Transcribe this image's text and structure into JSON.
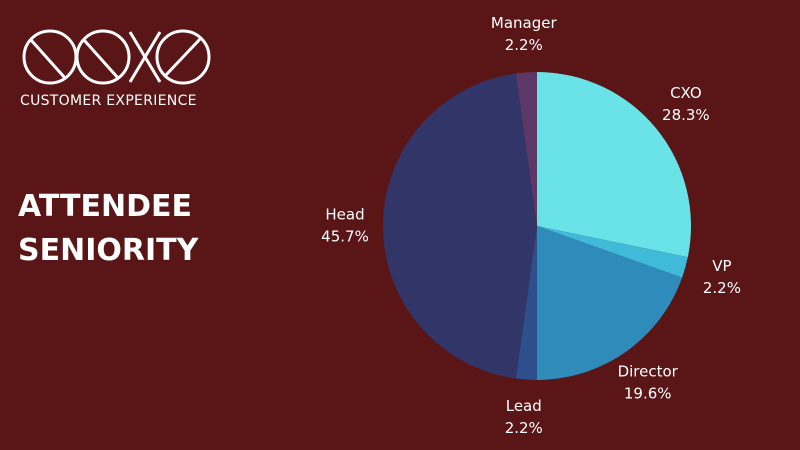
{
  "brand": {
    "tagline": "CUSTOMER EXPERIENCE"
  },
  "chart_data": {
    "type": "pie",
    "title": "ATTENDEE SENIORITY",
    "categories": [
      "CXO",
      "VP",
      "Director",
      "Lead",
      "Head",
      "Manager"
    ],
    "values": [
      28.3,
      2.2,
      19.6,
      2.2,
      45.7,
      2.2
    ],
    "value_labels": [
      "28.3%",
      "2.2%",
      "19.6%",
      "2.2%",
      "45.7%",
      "2.2%"
    ],
    "colors": [
      "#6ae3e8",
      "#3fbad9",
      "#2e8bba",
      "#2d4f8c",
      "#323568",
      "#5b3866"
    ]
  }
}
